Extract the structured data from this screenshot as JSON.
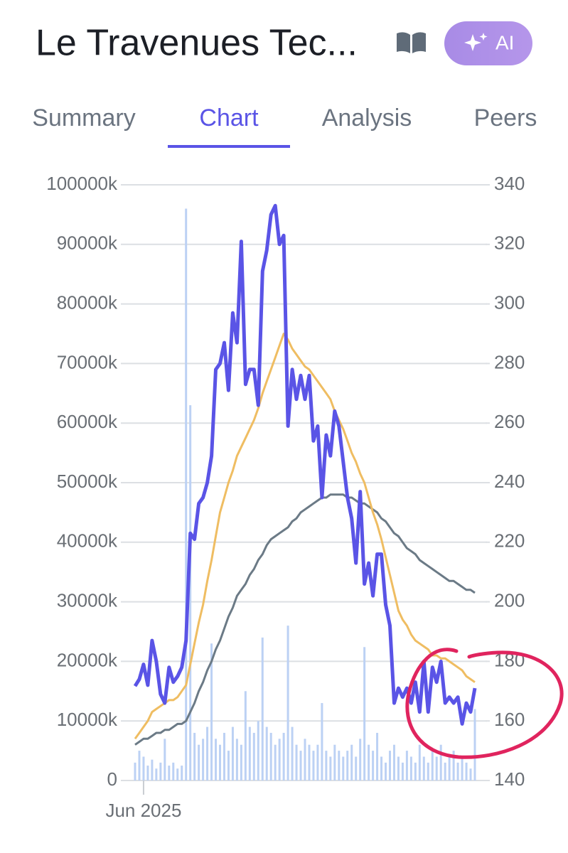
{
  "header": {
    "title": "Le Travenues Tec...",
    "ai_button": "AI"
  },
  "tabs": {
    "items": [
      "Summary",
      "Chart",
      "Analysis",
      "Peers"
    ],
    "active": 1
  },
  "chart_data": {
    "type": "line",
    "categories": [
      null,
      null,
      "Jun 2025",
      null,
      null,
      null,
      null,
      null,
      null,
      null,
      null,
      null,
      null,
      null,
      null,
      null,
      null,
      null,
      null,
      null,
      null,
      null,
      null,
      null,
      null,
      null,
      null,
      null,
      null,
      null,
      null,
      null,
      null,
      null,
      null,
      null,
      null,
      null,
      null,
      null,
      null,
      null,
      null,
      null,
      null,
      null,
      null,
      null,
      null,
      null,
      null,
      null,
      null,
      null,
      null,
      null,
      null,
      null,
      null,
      null,
      null,
      null,
      null,
      null,
      null,
      null,
      null,
      null,
      null,
      null,
      null,
      null,
      null,
      null,
      null,
      null,
      null,
      null,
      null,
      null,
      null
    ],
    "ylim": [
      0,
      100000
    ],
    "yticks": [
      {
        "value": 0,
        "label": "0"
      },
      {
        "value": 10000,
        "label": "10000k"
      },
      {
        "value": 20000,
        "label": "20000k"
      },
      {
        "value": 30000,
        "label": "30000k"
      },
      {
        "value": 40000,
        "label": "40000k"
      },
      {
        "value": 50000,
        "label": "50000k"
      },
      {
        "value": 60000,
        "label": "60000k"
      },
      {
        "value": 70000,
        "label": "70000k"
      },
      {
        "value": 80000,
        "label": "80000k"
      },
      {
        "value": 90000,
        "label": "90000k"
      },
      {
        "value": 100000,
        "label": "100000k"
      }
    ],
    "y2lim": [
      140,
      340
    ],
    "y2ticks": [
      140,
      160,
      180,
      200,
      220,
      240,
      260,
      280,
      300,
      320,
      340
    ],
    "grid": true,
    "series": [
      {
        "type": "bar",
        "color": "#bcd1f4",
        "values": [
          3000,
          5000,
          4000,
          2500,
          3500,
          2000,
          3000,
          7000,
          2500,
          3000,
          2000,
          2500,
          96000,
          63000,
          8000,
          6000,
          7000,
          9000,
          23000,
          7000,
          6000,
          8000,
          5000,
          9000,
          7000,
          6000,
          15000,
          9000,
          8000,
          10000,
          24000,
          9000,
          8000,
          6000,
          7000,
          8000,
          26000,
          9000,
          6000,
          5000,
          7000,
          6000,
          5000,
          6000,
          13000,
          5000,
          4000,
          6000,
          5000,
          4000,
          5000,
          6000,
          4000,
          7000,
          22400,
          6000,
          5000,
          8000,
          4000,
          3000,
          5000,
          6000,
          4000,
          3000,
          5000,
          4000,
          3000,
          6000,
          4000,
          3000,
          5000,
          4000,
          6000,
          3000,
          4000,
          5000,
          3000,
          4000,
          3000,
          2000,
          12000
        ]
      },
      {
        "type": "line",
        "axis": "y2",
        "color": "#6b7a86",
        "values": [
          152,
          153,
          154,
          154,
          155,
          156,
          156,
          157,
          157,
          158,
          159,
          159,
          160,
          163,
          166,
          170,
          173,
          177,
          180,
          184,
          187,
          191,
          195,
          198,
          202,
          204,
          206,
          209,
          211,
          214,
          216,
          219,
          221,
          222,
          223,
          224,
          225,
          227,
          228,
          230,
          231,
          232,
          233,
          234,
          235,
          235,
          236,
          236,
          236,
          236,
          235,
          235,
          234,
          233,
          233,
          232,
          231,
          230,
          228,
          227,
          225,
          223,
          222,
          220,
          218,
          217,
          216,
          214,
          213,
          212,
          211,
          210,
          209,
          208,
          207,
          207,
          206,
          205,
          204,
          204,
          203
        ]
      },
      {
        "type": "line",
        "axis": "y2",
        "color": "#efbd62",
        "values": [
          154,
          156,
          158,
          160,
          163,
          164,
          165,
          166,
          167,
          167,
          168,
          170,
          172,
          179,
          186,
          193,
          199,
          207,
          214,
          222,
          230,
          235,
          240,
          244,
          249,
          252,
          255,
          258,
          261,
          265,
          270,
          274,
          278,
          282,
          286,
          290,
          288,
          285,
          283,
          281,
          279,
          278,
          276,
          274,
          272,
          270,
          268,
          264,
          261,
          258,
          254,
          250,
          247,
          243,
          240,
          235,
          230,
          226,
          221,
          215,
          209,
          203,
          197,
          194,
          192,
          189,
          187,
          186,
          185,
          184,
          182,
          182,
          181,
          181,
          180,
          179,
          178,
          177,
          175,
          174,
          173
        ]
      },
      {
        "type": "line",
        "axis": "y2",
        "color": "#5a54e6",
        "values": [
          171.7,
          174,
          179,
          172,
          187,
          180,
          169,
          166,
          178,
          173,
          175,
          178,
          187,
          223,
          221,
          233,
          235,
          240,
          249,
          278,
          280,
          287,
          271,
          297,
          287,
          321,
          273,
          278,
          278,
          266,
          311,
          318,
          330,
          333,
          320,
          323,
          259,
          278,
          268,
          276,
          268,
          276,
          254,
          259,
          235,
          256,
          249,
          264,
          259,
          247,
          235,
          228,
          213,
          237,
          206,
          213,
          202,
          216,
          216,
          199,
          192,
          166,
          171,
          168,
          171,
          166,
          173,
          163,
          180,
          163,
          178,
          173,
          180,
          166,
          168,
          166,
          168,
          159,
          166,
          163,
          171
        ]
      }
    ]
  }
}
